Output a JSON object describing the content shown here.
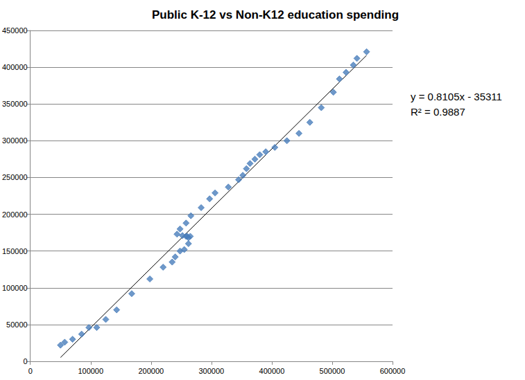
{
  "chart_data": {
    "type": "scatter",
    "title": "Public K-12 vs Non-K12 education spending",
    "x": [
      50000,
      57000,
      70000,
      85000,
      97000,
      110000,
      125000,
      143000,
      168000,
      198000,
      220000,
      235000,
      240000,
      243000,
      248000,
      248000,
      252000,
      255000,
      258000,
      258000,
      260000,
      262000,
      262000,
      265000,
      266000,
      283000,
      297000,
      306000,
      328000,
      345000,
      352000,
      358000,
      364000,
      372000,
      380000,
      390000,
      405000,
      425000,
      445000,
      463000,
      482000,
      502000,
      512000,
      523000,
      535000,
      541000,
      557000
    ],
    "values": [
      22000,
      26000,
      30000,
      37000,
      46000,
      46000,
      57000,
      70000,
      92000,
      112000,
      128000,
      135000,
      142000,
      173000,
      180000,
      150000,
      171000,
      152000,
      170000,
      188000,
      170000,
      160000,
      168000,
      170000,
      198000,
      209000,
      221000,
      229000,
      237000,
      247000,
      253000,
      262000,
      269000,
      275000,
      281000,
      285000,
      291000,
      300000,
      310000,
      325000,
      345000,
      366000,
      384000,
      393000,
      403000,
      412000,
      421000
    ],
    "color": "#4a7ebb",
    "marker": "diamond",
    "trendline": {
      "x": [
        50000,
        557000
      ],
      "values": [
        5214,
        416138
      ],
      "color": "#000000"
    },
    "annotations": [
      "y = 0.8105x - 35311",
      "R² = 0.9887"
    ],
    "xlim": [
      0,
      600000
    ],
    "xticks": [
      0,
      100000,
      200000,
      300000,
      400000,
      500000,
      600000
    ],
    "ylim": [
      0,
      450000
    ],
    "yticks": [
      0,
      50000,
      100000,
      150000,
      200000,
      250000,
      300000,
      350000,
      400000,
      450000
    ],
    "grid": true
  }
}
